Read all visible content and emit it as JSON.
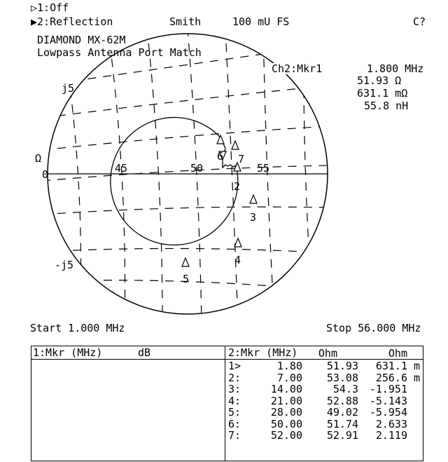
{
  "header": {
    "trace1": "▷1:Off",
    "trace2": "▶2:Reflection",
    "format": "Smith",
    "scale": "100 mU FS",
    "status": "C?"
  },
  "title": {
    "line1": "DIAMOND MX-62M",
    "line2": "Lowpass Antenna Port Match"
  },
  "marker_readout": {
    "label": "Ch2:Mkr1",
    "freq": "1.800 MHz",
    "resistance": "51.93 Ω",
    "reactance": "631.1 mΩ",
    "inductance": "55.8 nH"
  },
  "chart_labels": {
    "j5": "j5",
    "neg_j5": "-j5",
    "omega": "Ω",
    "zero": "0",
    "r45": "45",
    "r50": "50",
    "r55": "55"
  },
  "markers": [
    "1",
    "2",
    "3",
    "4",
    "5",
    "6",
    "7"
  ],
  "sweep": {
    "start": "Start 1.000 MHz",
    "stop": "Stop 56.000 MHz"
  },
  "table1": {
    "header_mkr": "1:Mkr (MHz)",
    "header_unit": "dB"
  },
  "table2": {
    "header": [
      "2:Mkr (MHz)",
      "Ohm",
      "Ohm"
    ],
    "rows": [
      {
        "id": "1>",
        "freq": "1.80",
        "r": "51.93",
        "x": "631.1",
        "unit": "m"
      },
      {
        "id": "2:",
        "freq": "7.00",
        "r": "53.08",
        "x": "256.6",
        "unit": "m"
      },
      {
        "id": "3:",
        "freq": "14.00",
        "r": "54.3",
        "x": "-1.951",
        "unit": ""
      },
      {
        "id": "4:",
        "freq": "21.00",
        "r": "52.88",
        "x": "-5.143",
        "unit": ""
      },
      {
        "id": "5:",
        "freq": "28.00",
        "r": "49.02",
        "x": "-5.954",
        "unit": ""
      },
      {
        "id": "6:",
        "freq": "50.00",
        "r": "51.74",
        "x": "2.633",
        "unit": ""
      },
      {
        "id": "7:",
        "freq": "52.00",
        "r": "52.91",
        "x": "2.119",
        "unit": ""
      }
    ]
  },
  "colors": {
    "foreground": "#000000",
    "background": "#ffffff"
  }
}
